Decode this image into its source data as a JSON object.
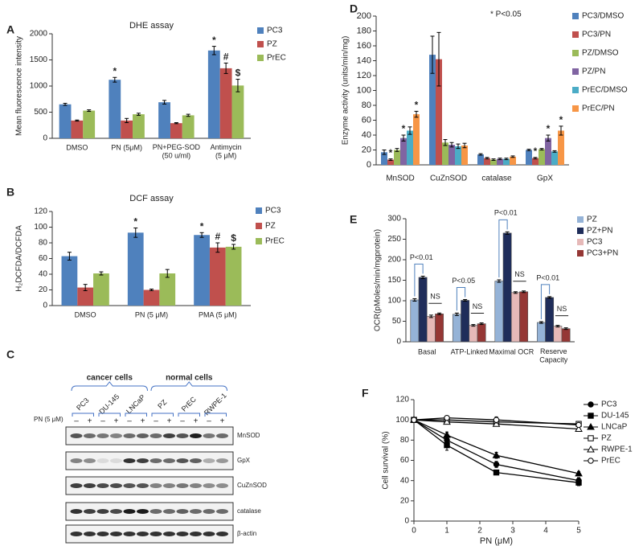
{
  "chart_data": [
    {
      "panel": "A",
      "type": "bar",
      "title": "DHE assay",
      "y_label": "Mean fluorescence intensity",
      "categories": [
        "DMSO",
        "PN (5μM)",
        "PN+PEG-SOD\n(50 u/ml)",
        "Antimycin\n(5 μM)"
      ],
      "series": [
        {
          "name": "PC3",
          "color": "#4f81bd",
          "values": [
            650,
            1120,
            690,
            1680
          ],
          "errors": [
            20,
            45,
            35,
            80
          ],
          "markers": [
            null,
            "*",
            null,
            "*"
          ]
        },
        {
          "name": "PZ",
          "color": "#c0504d",
          "values": [
            340,
            340,
            290,
            1340
          ],
          "errors": [
            10,
            40,
            10,
            100
          ],
          "markers": [
            null,
            null,
            null,
            "#"
          ]
        },
        {
          "name": "PrEC",
          "color": "#9bbb59",
          "values": [
            530,
            460,
            440,
            1010
          ],
          "errors": [
            15,
            20,
            20,
            120
          ],
          "markers": [
            null,
            null,
            null,
            "$"
          ]
        }
      ],
      "ylim": [
        0,
        2000
      ],
      "yticks": [
        0,
        500,
        1000,
        1500,
        2000
      ],
      "legend": "right"
    },
    {
      "panel": "B",
      "type": "bar",
      "title": "DCF assay",
      "y_label": "H₂DCFDA/DCFDA",
      "categories": [
        "DMSO",
        "PN (5 μM)",
        "PMA (5 μM)"
      ],
      "series": [
        {
          "name": "PC3",
          "color": "#4f81bd",
          "values": [
            63,
            93,
            90
          ],
          "errors": [
            5,
            6,
            3
          ],
          "markers": [
            null,
            "*",
            "*"
          ]
        },
        {
          "name": "PZ",
          "color": "#c0504d",
          "values": [
            23,
            20,
            74
          ],
          "errors": [
            4,
            1,
            6
          ],
          "markers": [
            null,
            null,
            "#"
          ]
        },
        {
          "name": "PrEC",
          "color": "#9bbb59",
          "values": [
            41,
            41,
            75
          ],
          "errors": [
            2,
            5,
            3
          ],
          "markers": [
            null,
            null,
            "$"
          ]
        }
      ],
      "ylim": [
        0,
        120
      ],
      "yticks": [
        0,
        20,
        40,
        60,
        80,
        100,
        120
      ],
      "legend": "right"
    },
    {
      "panel": "D",
      "type": "bar",
      "y_label": "Enzyme activity (units/min/mg)",
      "annotation": "* P<0.05",
      "categories": [
        "MnSOD",
        "CuZnSOD",
        "catalase",
        "GpX"
      ],
      "series": [
        {
          "name": "PC3/DMSO",
          "color": "#4f81bd",
          "values": [
            17,
            148,
            14,
            20
          ],
          "errors": [
            3,
            25,
            1,
            1
          ],
          "markers": [
            null,
            null,
            null,
            null
          ]
        },
        {
          "name": "PC3/PN",
          "color": "#c0504d",
          "values": [
            7,
            142,
            9,
            9
          ],
          "errors": [
            1,
            36,
            1,
            1
          ],
          "markers": [
            "*",
            null,
            null,
            "*"
          ]
        },
        {
          "name": "PZ/DMSO",
          "color": "#9bbb59",
          "values": [
            20,
            30,
            7,
            21
          ],
          "errors": [
            2,
            4,
            1,
            1
          ],
          "markers": [
            null,
            null,
            null,
            null
          ]
        },
        {
          "name": "PZ/PN",
          "color": "#8064a2",
          "values": [
            36,
            27,
            8,
            36
          ],
          "errors": [
            4,
            3,
            1,
            4
          ],
          "markers": [
            "*",
            null,
            null,
            "*"
          ]
        },
        {
          "name": "PrEC/DMSO",
          "color": "#4bacc6",
          "values": [
            46,
            25,
            8,
            18
          ],
          "errors": [
            5,
            3,
            1,
            1
          ],
          "markers": [
            null,
            null,
            null,
            null
          ]
        },
        {
          "name": "PrEC/PN",
          "color": "#f79646",
          "values": [
            68,
            26,
            11,
            46
          ],
          "errors": [
            4,
            3,
            1,
            6
          ],
          "markers": [
            "*",
            null,
            null,
            "*"
          ]
        }
      ],
      "ylim": [
        0,
        200
      ],
      "yticks": [
        0,
        20,
        40,
        60,
        80,
        100,
        120,
        140,
        160,
        180,
        200
      ],
      "legend": "right"
    },
    {
      "panel": "E",
      "type": "bar",
      "y_label": "OCR(pMoles/min/mgprotein)",
      "categories": [
        "Basal",
        "ATP-Linked",
        "Maximal OCR",
        "Reserve\nCapacity"
      ],
      "p_labels": [
        "P<0.01",
        "P<0.05",
        "P<0.01",
        "P<0.01"
      ],
      "ns_labels": [
        "NS",
        "NS",
        "NS",
        "NS"
      ],
      "series": [
        {
          "name": "PZ",
          "color": "#95b3d7",
          "values": [
            102,
            67,
            148,
            47
          ],
          "errors": [
            3,
            3,
            3,
            2
          ]
        },
        {
          "name": "PZ+PN",
          "color": "#1f2d5a",
          "values": [
            157,
            101,
            265,
            108
          ],
          "errors": [
            3,
            2,
            3,
            2
          ]
        },
        {
          "name": "PC3",
          "color": "#e6b9b8",
          "values": [
            62,
            40,
            120,
            38
          ],
          "errors": [
            3,
            2,
            2,
            2
          ]
        },
        {
          "name": "PC3+PN",
          "color": "#953735",
          "values": [
            68,
            44,
            122,
            32
          ],
          "errors": [
            2,
            2,
            2,
            2
          ]
        }
      ],
      "ylim": [
        0,
        300
      ],
      "yticks": [
        0,
        50,
        100,
        150,
        200,
        250,
        300
      ],
      "legend": "right"
    },
    {
      "panel": "F",
      "type": "line",
      "x_label": "PN (μM)",
      "y_label": "Cell survival (%)",
      "x": [
        0,
        1,
        2.5,
        5
      ],
      "series": [
        {
          "name": "PC3",
          "color": "#000000",
          "marker": "circle",
          "filled": true,
          "values": [
            100,
            80,
            56,
            40
          ],
          "errors": [
            2,
            4,
            3,
            3
          ]
        },
        {
          "name": "DU-145",
          "color": "#000000",
          "marker": "square",
          "filled": true,
          "values": [
            100,
            75,
            48,
            38
          ],
          "errors": [
            2,
            5,
            2,
            3
          ]
        },
        {
          "name": "LNCaP",
          "color": "#000000",
          "marker": "triangle",
          "filled": true,
          "values": [
            100,
            85,
            65,
            47
          ],
          "errors": [
            2,
            3,
            3,
            2
          ]
        },
        {
          "name": "PZ",
          "color": "#000000",
          "marker": "square",
          "filled": false,
          "values": [
            100,
            100,
            98,
            96
          ],
          "errors": [
            2,
            2,
            2,
            2
          ]
        },
        {
          "name": "RWPE-1",
          "color": "#000000",
          "marker": "triangle",
          "filled": false,
          "values": [
            100,
            98,
            96,
            91
          ],
          "errors": [
            2,
            2,
            2,
            2
          ]
        },
        {
          "name": "PrEC",
          "color": "#000000",
          "marker": "circle",
          "filled": false,
          "values": [
            100,
            102,
            100,
            95
          ],
          "errors": [
            2,
            2,
            3,
            2
          ]
        }
      ],
      "xlim": [
        0,
        5
      ],
      "xticks": [
        0,
        1,
        2,
        3,
        4,
        5
      ],
      "ylim": [
        0,
        120
      ],
      "yticks": [
        0,
        20,
        40,
        60,
        80,
        100,
        120
      ],
      "legend": "right"
    }
  ],
  "blot": {
    "panel": "C",
    "groups": [
      "cancer cells",
      "normal cells"
    ],
    "cell_lines": [
      "PC3",
      "DU-145",
      "LNCaP",
      "PZ",
      "PrEC",
      "RWPE-1"
    ],
    "treatment_label": "PN (5 μM)",
    "treatment_signs": [
      "–",
      "+",
      "–",
      "+",
      "–",
      "+",
      "–",
      "+",
      "–",
      "+",
      "–",
      "+"
    ],
    "proteins": [
      "MnSOD",
      "GpX",
      "CuZnSOD",
      "catalase",
      "β-actin"
    ]
  }
}
